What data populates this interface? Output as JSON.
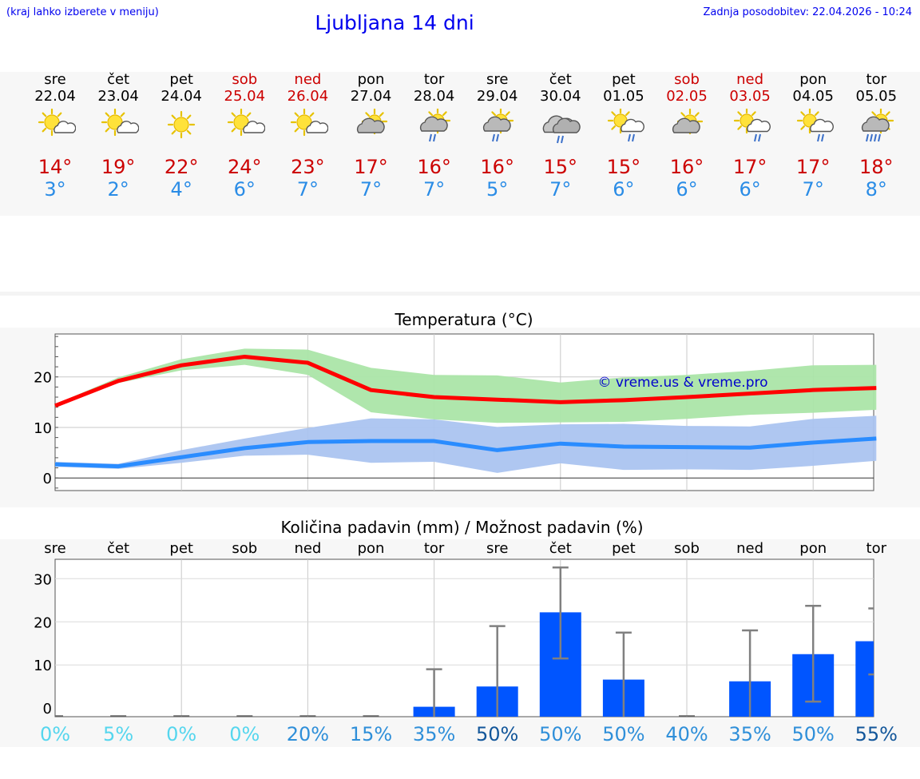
{
  "header": {
    "hint": "(kraj lahko izberete v meniju)",
    "title": "Ljubljana 14 dni",
    "updated": "Zadnja posodobitev: 22.04.2026 - 10:24"
  },
  "days": [
    {
      "name": "sre",
      "date": "22.04",
      "weekend": false,
      "icon": "sun-cloud-icon",
      "tmax": "14°",
      "tmin": "3°"
    },
    {
      "name": "čet",
      "date": "23.04",
      "weekend": false,
      "icon": "sun-cloud-icon",
      "tmax": "19°",
      "tmin": "2°"
    },
    {
      "name": "pet",
      "date": "24.04",
      "weekend": false,
      "icon": "sun-icon",
      "tmax": "22°",
      "tmin": "4°"
    },
    {
      "name": "sob",
      "date": "25.04",
      "weekend": true,
      "icon": "sun-cloud-icon",
      "tmax": "24°",
      "tmin": "6°"
    },
    {
      "name": "ned",
      "date": "26.04",
      "weekend": true,
      "icon": "sun-cloud-icon",
      "tmax": "23°",
      "tmin": "7°"
    },
    {
      "name": "pon",
      "date": "27.04",
      "weekend": false,
      "icon": "partly-cloudy-icon",
      "tmax": "17°",
      "tmin": "7°"
    },
    {
      "name": "tor",
      "date": "28.04",
      "weekend": false,
      "icon": "partly-cloudy-rain-icon",
      "tmax": "16°",
      "tmin": "7°"
    },
    {
      "name": "sre",
      "date": "29.04",
      "weekend": false,
      "icon": "partly-cloudy-rain-icon",
      "tmax": "16°",
      "tmin": "5°"
    },
    {
      "name": "čet",
      "date": "30.04",
      "weekend": false,
      "icon": "cloudy-rain-icon",
      "tmax": "15°",
      "tmin": "7°"
    },
    {
      "name": "pet",
      "date": "01.05",
      "weekend": false,
      "icon": "sun-cloud-rain-icon",
      "tmax": "15°",
      "tmin": "6°"
    },
    {
      "name": "sob",
      "date": "02.05",
      "weekend": true,
      "icon": "partly-cloudy-icon",
      "tmax": "16°",
      "tmin": "6°"
    },
    {
      "name": "ned",
      "date": "03.05",
      "weekend": true,
      "icon": "sun-cloud-rain-icon",
      "tmax": "17°",
      "tmin": "6°"
    },
    {
      "name": "pon",
      "date": "04.05",
      "weekend": false,
      "icon": "sun-cloud-rain-icon",
      "tmax": "17°",
      "tmin": "7°"
    },
    {
      "name": "tor",
      "date": "05.05",
      "weekend": false,
      "icon": "partly-cloudy-heavy-rain-icon",
      "tmax": "18°",
      "tmin": "8°"
    }
  ],
  "colors": {
    "max_line": "#ff0000",
    "max_band": "#abe5a8",
    "min_line": "#2a8cff",
    "min_band": "#abc4f0",
    "bar": "#0055ff",
    "errorbar": "#808080"
  },
  "chart_data": [
    {
      "type": "line",
      "title": "Temperatura (°C)",
      "watermark": "© vreme.us & vreme.pro",
      "ylim": [
        -2.5,
        28.5
      ],
      "yticks": [
        "0",
        "10",
        "20"
      ],
      "x": [
        0,
        1,
        2,
        3,
        4,
        5,
        6,
        7,
        8,
        9,
        10,
        11,
        12,
        13
      ],
      "series": [
        {
          "name": "max",
          "values": [
            14.3,
            19.2,
            22.3,
            24.0,
            22.8,
            17.4,
            16.0,
            15.5,
            15.0,
            15.4,
            16.0,
            16.7,
            17.4,
            17.8
          ],
          "low": [
            14.0,
            18.8,
            21.3,
            22.4,
            20.4,
            13.0,
            11.6,
            10.9,
            11.0,
            11.1,
            11.7,
            12.5,
            12.9,
            13.5
          ],
          "high": [
            14.6,
            19.9,
            23.5,
            25.6,
            25.4,
            21.8,
            20.4,
            20.3,
            18.9,
            19.9,
            20.4,
            21.2,
            22.3,
            22.4
          ]
        },
        {
          "name": "min",
          "values": [
            2.7,
            2.3,
            4.1,
            5.9,
            7.1,
            7.3,
            7.3,
            5.5,
            6.8,
            6.2,
            6.1,
            6.0,
            7.0,
            7.8
          ],
          "low": [
            2.2,
            1.8,
            3.0,
            4.4,
            4.6,
            3.0,
            3.2,
            1.0,
            2.9,
            1.6,
            1.7,
            1.6,
            2.4,
            3.4
          ],
          "high": [
            3.2,
            2.8,
            5.5,
            7.8,
            9.9,
            11.8,
            11.6,
            10.1,
            10.6,
            10.7,
            10.3,
            10.2,
            11.7,
            12.3
          ]
        }
      ]
    },
    {
      "type": "bar",
      "title": "Količina padavin (mm) / Možnost padavin (%)",
      "ylim": [
        -2,
        34.5
      ],
      "yticks": [
        "0",
        "10",
        "20",
        "30"
      ],
      "categories": [
        "sre",
        "čet",
        "pet",
        "sob",
        "ned",
        "pon",
        "tor",
        "sre",
        "čet",
        "pet",
        "sob",
        "ned",
        "pon",
        "tor"
      ],
      "values": [
        0,
        0,
        0,
        0,
        0,
        0,
        0.3,
        5.0,
        22.2,
        6.6,
        0,
        6.2,
        12.5,
        15.5
      ],
      "err_low": [
        0,
        0,
        0,
        0,
        0,
        0,
        0,
        0,
        11.5,
        0,
        0,
        0,
        1.5,
        7.8
      ],
      "err_high": [
        0,
        0,
        0,
        0,
        0,
        0,
        9.0,
        19.0,
        32.6,
        17.5,
        0,
        18.0,
        23.7,
        23.1
      ],
      "chance": [
        "0%",
        "5%",
        "0%",
        "0%",
        "20%",
        "15%",
        "35%",
        "50%",
        "50%",
        "50%",
        "40%",
        "35%",
        "50%",
        "55%"
      ],
      "chance_colors": [
        "#55d6ee",
        "#55d6ee",
        "#55d6ee",
        "#55d6ee",
        "#2f8fd9",
        "#2f8fd9",
        "#2f8fd9",
        "#12569a",
        "#2f8fd9",
        "#2f8fd9",
        "#2f8fd9",
        "#2f8fd9",
        "#2f8fd9",
        "#12569a"
      ]
    }
  ]
}
